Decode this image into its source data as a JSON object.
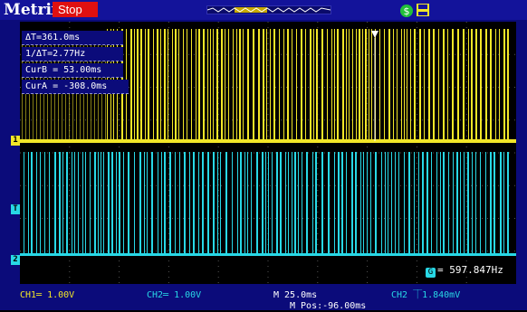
{
  "header": {
    "brand": "Metrix",
    "status": "Stop",
    "colors": {
      "bar": "#13139a",
      "stop": "#e01010"
    },
    "icons": [
      "acquisition-waveform-icon",
      "lock-icon",
      "disk-icon"
    ]
  },
  "cursor_readouts": [
    {
      "label": "ΔT=361.0ms"
    },
    {
      "label": "1/ΔT=2.77Hz"
    },
    {
      "label": "CurB = 53.00ms"
    },
    {
      "label": "CurA = -308.0ms"
    }
  ],
  "channels": {
    "ch1": {
      "marker": "1",
      "color": "#f2e628"
    },
    "ch2": {
      "marker": "2",
      "color": "#28d8e6"
    },
    "trigger": {
      "marker": "T"
    }
  },
  "frequency": {
    "icon": "G",
    "value": "= 597.847Hz"
  },
  "footer": {
    "ch1_scale": "CH1═ 1.00V",
    "ch2_scale": "CH2═ 1.00V",
    "timebase": "M 25.0ms",
    "trigger_level": "CH2 ⏉1.840mV",
    "mpos": "M Pos:-96.00ms"
  }
}
